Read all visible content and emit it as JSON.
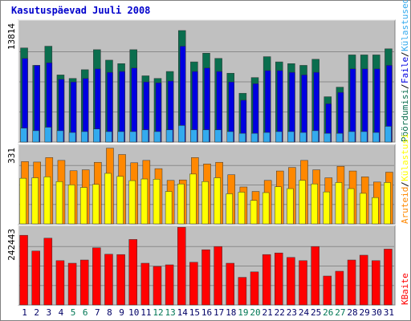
{
  "chart_data": {
    "title": "Kasutuspäevad Juuli 2008",
    "colors": {
      "title": "#0000cc",
      "background": "#c0c0c0",
      "pages": "#0a6e4e",
      "files": "#0000e0",
      "hits": "#33aaee",
      "visits": "#ffff00",
      "sites": "#ff8800",
      "kbytes": "#ff0000",
      "weekend_label": "#007755",
      "weekday_label": "#000066"
    },
    "days": [
      "1",
      "2",
      "3",
      "4",
      "5",
      "6",
      "7",
      "8",
      "9",
      "10",
      "11",
      "12",
      "13",
      "14",
      "15",
      "16",
      "17",
      "18",
      "19",
      "20",
      "21",
      "22",
      "23",
      "24",
      "25",
      "26",
      "27",
      "28",
      "29",
      "30",
      "31"
    ],
    "weekend_days": [
      5,
      6,
      12,
      13,
      19,
      20,
      26,
      27
    ],
    "panels": [
      {
        "type": "bar",
        "max_label": "13814",
        "ymax": 13814,
        "legend": [
          "Pöördumisi",
          "Faile",
          "Külastused"
        ],
        "legend_colors": [
          "#0a6e4e",
          "#0000e0",
          "#33aaee"
        ],
        "series": [
          {
            "values": [
              10800,
              8800,
              11000,
              7700,
              7300,
              8300,
              10600,
              9400,
              9000,
              10600,
              7600,
              7300,
              8100,
              12800,
              9200,
              10200,
              9600,
              7900,
              5600,
              7400,
              9800,
              9200,
              9000,
              8800,
              9500,
              5200,
              6300,
              10000,
              10000,
              10000,
              10700
            ]
          },
          {
            "values": [
              9600,
              8800,
              9100,
              7200,
              6900,
              7300,
              8400,
              8000,
              8100,
              8500,
              6900,
              6800,
              7000,
              11000,
              8100,
              8500,
              8100,
              6900,
              4800,
              6700,
              8200,
              8200,
              8000,
              7700,
              8000,
              4400,
              5700,
              8400,
              8400,
              8400,
              8800
            ]
          },
          {
            "values": [
              1600,
              1300,
              1700,
              1300,
              1100,
              1200,
              1500,
              1200,
              1200,
              1200,
              1400,
              1200,
              1400,
              1900,
              1400,
              1400,
              1400,
              1200,
              1000,
              1000,
              1100,
              1200,
              1200,
              1100,
              1300,
              1000,
              1000,
              1200,
              1200,
              1100,
              1800
            ]
          }
        ]
      },
      {
        "type": "bar",
        "max_label": "331",
        "ymax": 331,
        "legend": [
          "Aruteid",
          "Külastusi"
        ],
        "legend_colors": [
          "#ff8800",
          "#ffff00"
        ],
        "series": [
          {
            "values": [
              265,
              263,
              282,
              270,
              226,
              230,
              262,
              322,
              295,
              260,
              270,
              235,
              185,
              187,
              282,
              255,
              262,
              209,
              157,
              138,
              185,
              225,
              240,
              270,
              230,
              196,
              245,
              225,
              200,
              178,
              220
            ]
          },
          {
            "values": [
              194,
              196,
              200,
              180,
              166,
              155,
              168,
              215,
              202,
              184,
              191,
              190,
              138,
              170,
              212,
              180,
              196,
              128,
              135,
              100,
              133,
              158,
              150,
              185,
              170,
              136,
              176,
              150,
              130,
              112,
              176
            ]
          }
        ]
      },
      {
        "type": "bar",
        "max_label": "242443",
        "ymax": 242443,
        "legend": [
          "KBaite"
        ],
        "legend_colors": [
          "#ff0000"
        ],
        "series": [
          {
            "values": [
              217000,
              168000,
              208000,
              138000,
              130000,
              140000,
              178000,
              158000,
              157000,
              204000,
              130000,
              120000,
              125000,
              242000,
              133000,
              172000,
              182000,
              130000,
              86000,
              103000,
              157000,
              162000,
              148000,
              138000,
              182000,
              90000,
              105000,
              140000,
              155000,
              138000,
              174000
            ]
          }
        ]
      }
    ]
  }
}
